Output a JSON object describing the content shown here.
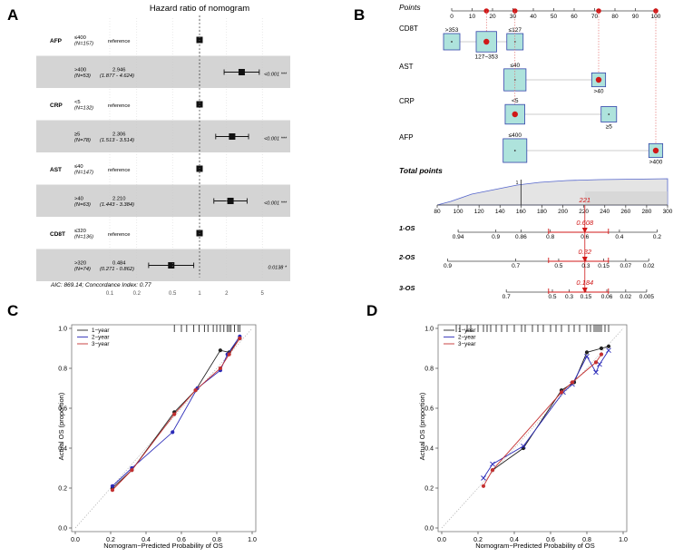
{
  "panels": {
    "a": "A",
    "b": "B",
    "c": "C",
    "d": "D"
  },
  "chart_data": [
    {
      "panel": "A",
      "type": "forest",
      "title": "Hazard ratio of nomogram",
      "footer": "AIC: 869.14; Concordance Index: 0.77",
      "xscale": "log",
      "xticks": [
        0.1,
        0.2,
        0.5,
        1,
        2,
        5
      ],
      "xtick_labels": [
        "0.1",
        "0.2",
        "0.5",
        "1",
        "2",
        "5"
      ],
      "rows": [
        {
          "var": "AFP",
          "level": "≤400",
          "n": "(N=157)",
          "ref": true,
          "hr_text": "reference",
          "hr": 1
        },
        {
          "var": "",
          "level": ">400",
          "n": "(N=53)",
          "ref": false,
          "hr_text": "2.946",
          "ci_text": "(1.877 - 4.624)",
          "hr": 2.946,
          "lo": 1.877,
          "hi": 4.624,
          "p": "<0.001 ***"
        },
        {
          "var": "CRP",
          "level": "<5",
          "n": "(N=132)",
          "ref": true,
          "hr_text": "reference",
          "hr": 1
        },
        {
          "var": "",
          "level": "≥5",
          "n": "(N=78)",
          "ref": false,
          "hr_text": "2.306",
          "ci_text": "(1.513 - 3.514)",
          "hr": 2.306,
          "lo": 1.513,
          "hi": 3.514,
          "p": "<0.001 ***"
        },
        {
          "var": "AST",
          "level": "≤40",
          "n": "(N=147)",
          "ref": true,
          "hr_text": "reference",
          "hr": 1
        },
        {
          "var": "",
          "level": ">40",
          "n": "(N=63)",
          "ref": false,
          "hr_text": "2.210",
          "ci_text": "(1.443 - 3.384)",
          "hr": 2.21,
          "lo": 1.443,
          "hi": 3.384,
          "p": "<0.001 ***"
        },
        {
          "var": "CD8T",
          "level": "≤320",
          "n": "(N=136)",
          "ref": true,
          "hr_text": "reference",
          "hr": 1
        },
        {
          "var": "",
          "level": ">320",
          "n": "(N=74)",
          "ref": false,
          "hr_text": "0.484",
          "ci_text": "(0.271 - 0.862)",
          "hr": 0.484,
          "lo": 0.271,
          "hi": 0.862,
          "p": "0.0138 *"
        }
      ]
    },
    {
      "panel": "B",
      "type": "nomogram",
      "points_label": "Points",
      "points_ticks": [
        0,
        10,
        20,
        30,
        40,
        50,
        60,
        70,
        80,
        90,
        100
      ],
      "predictors": [
        {
          "name": "CD8T",
          "boxes": [
            {
              "label": ">353",
              "pts": 0,
              "size": 1.0,
              "lpos": "above",
              "sel": false
            },
            {
              "label": "127~353",
              "pts": 17,
              "size": 1.25,
              "lpos": "below",
              "sel": true
            },
            {
              "label": "≤127",
              "pts": 31,
              "size": 1.0,
              "lpos": "above",
              "sel": false
            }
          ]
        },
        {
          "name": "AST",
          "boxes": [
            {
              "label": "≤40",
              "pts": 31,
              "size": 1.35,
              "lpos": "above",
              "sel": false
            },
            {
              "label": ">40",
              "pts": 72,
              "size": 0.85,
              "lpos": "below",
              "sel": true
            }
          ]
        },
        {
          "name": "CRP",
          "boxes": [
            {
              "label": "<5",
              "pts": 31,
              "size": 1.2,
              "lpos": "above",
              "sel": true
            },
            {
              "label": "≥5",
              "pts": 77,
              "size": 0.95,
              "lpos": "below",
              "sel": false
            }
          ]
        },
        {
          "name": "AFP",
          "boxes": [
            {
              "label": "≤400",
              "pts": 31,
              "size": 1.45,
              "lpos": "above",
              "sel": false
            },
            {
              "label": ">400",
              "pts": 100,
              "size": 0.85,
              "lpos": "below",
              "sel": true
            }
          ]
        }
      ],
      "total_label": "Total points",
      "total_range": [
        80,
        300
      ],
      "total_ticks": [
        80,
        100,
        120,
        140,
        160,
        180,
        200,
        220,
        240,
        260,
        280,
        300
      ],
      "total_value": 221,
      "total_value_text": "221",
      "dist_marker_label": "1",
      "outcomes": [
        {
          "name": "1-OS",
          "value_text": "0.608",
          "labels": [
            "0.94",
            "0.9",
            "0.86",
            "0.8",
            "0.6",
            "0.4",
            "0.2"
          ],
          "pos": [
            100,
            136,
            160,
            188,
            221,
            254,
            290
          ]
        },
        {
          "name": "2-OS",
          "value_text": "0.32",
          "labels": [
            "0.9",
            "0.7",
            "0.5",
            "0.3",
            "0.15",
            "0.07",
            "0.02"
          ],
          "pos": [
            90,
            155,
            196,
            222,
            239,
            260,
            282
          ]
        },
        {
          "name": "3-OS",
          "value_text": "0.184",
          "labels": [
            "0.7",
            "0.5",
            "0.3",
            "0.15",
            "0.06",
            "0.02",
            "0.005"
          ],
          "pos": [
            146,
            190,
            206,
            222,
            242,
            260,
            280
          ]
        }
      ]
    },
    {
      "panel": "C",
      "type": "line",
      "title": "",
      "xlabel": "Nomogram−Predicted Probability of OS",
      "ylabel": "Actual OS (proportion)",
      "xlim": [
        0,
        1
      ],
      "ylim": [
        0,
        1
      ],
      "ticks": [
        0.0,
        0.2,
        0.4,
        0.6,
        0.8,
        1.0
      ],
      "tick_labels": [
        "0.0",
        "0.2",
        "0.4",
        "0.6",
        "0.8",
        "1.0"
      ],
      "legend": [
        "1−year",
        "2−year",
        "3−year"
      ],
      "rug": [
        0.56,
        0.6,
        0.63,
        0.67,
        0.7,
        0.73,
        0.75,
        0.78,
        0.8,
        0.82,
        0.84,
        0.86,
        0.87,
        0.88,
        0.9,
        0.92,
        0.93
      ],
      "series": [
        {
          "name": "1-year",
          "color": "#222222",
          "x": [
            0.21,
            0.32,
            0.56,
            0.68,
            0.82,
            0.87,
            0.93
          ],
          "y": [
            0.2,
            0.29,
            0.58,
            0.69,
            0.89,
            0.88,
            0.95
          ]
        },
        {
          "name": "2-year",
          "color": "#2b2bb8",
          "x": [
            0.21,
            0.32,
            0.55,
            0.69,
            0.82,
            0.86,
            0.93
          ],
          "y": [
            0.21,
            0.3,
            0.48,
            0.7,
            0.79,
            0.87,
            0.96
          ]
        },
        {
          "name": "3-year",
          "color": "#c43030",
          "x": [
            0.21,
            0.32,
            0.56,
            0.68,
            0.82,
            0.87,
            0.93
          ],
          "y": [
            0.19,
            0.29,
            0.57,
            0.69,
            0.8,
            0.87,
            0.95
          ]
        }
      ]
    },
    {
      "panel": "D",
      "type": "line",
      "title": "",
      "xlabel": "Nomogram−Predicted Probability of OS",
      "ylabel": "Actual OS (proportion)",
      "xlim": [
        0,
        1
      ],
      "ylim": [
        0,
        1
      ],
      "ticks": [
        0.0,
        0.2,
        0.4,
        0.6,
        0.8,
        1.0
      ],
      "tick_labels": [
        "0.0",
        "0.2",
        "0.4",
        "0.6",
        "0.8",
        "1.0"
      ],
      "legend": [
        "1−year",
        "2−year",
        "3−year"
      ],
      "rug": [
        0.08,
        0.1,
        0.14,
        0.16,
        0.2,
        0.23,
        0.25,
        0.27,
        0.3,
        0.33,
        0.36,
        0.4,
        0.44,
        0.46,
        0.5,
        0.53,
        0.56,
        0.6,
        0.63,
        0.66,
        0.7,
        0.73,
        0.76,
        0.8,
        0.82,
        0.84,
        0.85,
        0.86,
        0.87,
        0.88,
        0.9,
        0.92
      ],
      "series": [
        {
          "name": "1-year",
          "color": "#222222",
          "x": [
            0.28,
            0.45,
            0.66,
            0.73,
            0.8,
            0.88,
            0.92
          ],
          "y": [
            0.29,
            0.4,
            0.69,
            0.73,
            0.88,
            0.9,
            0.91
          ]
        },
        {
          "name": "2-year",
          "color": "#2b2bb8",
          "x": [
            0.23,
            0.28,
            0.45,
            0.67,
            0.72,
            0.8,
            0.85,
            0.87,
            0.92
          ],
          "y": [
            0.25,
            0.32,
            0.41,
            0.68,
            0.72,
            0.86,
            0.78,
            0.82,
            0.89
          ]
        },
        {
          "name": "3-year",
          "color": "#c43030",
          "x": [
            0.23,
            0.28,
            0.66,
            0.72,
            0.85,
            0.88
          ],
          "y": [
            0.21,
            0.29,
            0.68,
            0.73,
            0.83,
            0.87
          ]
        }
      ]
    }
  ]
}
